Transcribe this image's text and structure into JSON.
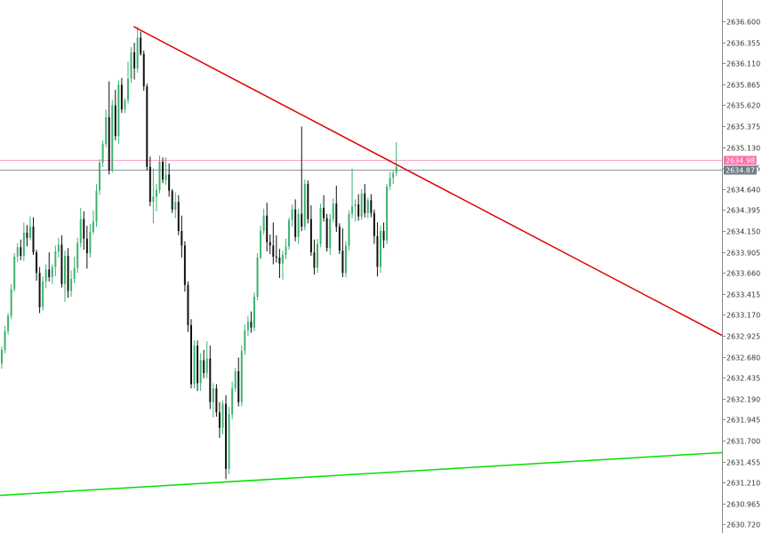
{
  "chart_data": {
    "type": "candlestick",
    "y_axis_side": "right",
    "ylim": [
      2630.62,
      2636.85
    ],
    "y_ticks": [
      "2636.600",
      "2636.355",
      "2636.110",
      "2635.865",
      "2635.620",
      "2635.375",
      "2635.130",
      "2634.885",
      "2634.640",
      "2634.395",
      "2634.150",
      "2633.905",
      "2633.660",
      "2633.415",
      "2633.170",
      "2632.925",
      "2632.680",
      "2632.435",
      "2632.190",
      "2631.945",
      "2631.700",
      "2631.455",
      "2631.210",
      "2630.965",
      "2630.720"
    ],
    "price_tags": [
      {
        "label": "2634.983",
        "value": 2634.983,
        "color": "#ff6fa8",
        "line_color": "#f5a6c4"
      },
      {
        "label": "2634.871",
        "value": 2634.871,
        "color": "#6d7a86",
        "line_color": "#8a96a2"
      }
    ],
    "trendlines": [
      {
        "name": "resistance",
        "color": "#e00000",
        "start": [
          0.185,
          2636.54
        ],
        "end": [
          1.0,
          2632.93
        ]
      },
      {
        "name": "support",
        "color": "#00e000",
        "start": [
          0.0,
          2631.06
        ],
        "end": [
          1.0,
          2631.56
        ]
      }
    ],
    "colors": {
      "bull": "#3cb371",
      "bear": "#111111",
      "axis": "#888888"
    },
    "candles": [
      [
        2632.6,
        2632.8,
        2632.54,
        2632.76
      ],
      [
        2632.76,
        2633.04,
        2632.72,
        2632.98
      ],
      [
        2632.98,
        2633.19,
        2632.94,
        2633.16
      ],
      [
        2633.16,
        2633.53,
        2633.12,
        2633.47
      ],
      [
        2633.47,
        2633.89,
        2633.44,
        2633.85
      ],
      [
        2633.85,
        2634.01,
        2633.79,
        2633.96
      ],
      [
        2633.96,
        2634.05,
        2633.81,
        2633.86
      ],
      [
        2633.86,
        2634.25,
        2633.8,
        2634.13
      ],
      [
        2634.13,
        2634.22,
        2633.97,
        2634.07
      ],
      [
        2634.07,
        2634.32,
        2634.04,
        2634.2
      ],
      [
        2634.2,
        2634.31,
        2633.87,
        2633.9
      ],
      [
        2633.9,
        2633.93,
        2633.57,
        2633.66
      ],
      [
        2633.66,
        2633.73,
        2633.19,
        2633.26
      ],
      [
        2633.26,
        2633.62,
        2633.22,
        2633.56
      ],
      [
        2633.56,
        2633.76,
        2633.48,
        2633.7
      ],
      [
        2633.7,
        2633.9,
        2633.56,
        2633.61
      ],
      [
        2633.61,
        2633.76,
        2633.53,
        2633.73
      ],
      [
        2633.73,
        2633.98,
        2633.62,
        2633.91
      ],
      [
        2633.91,
        2634.07,
        2633.84,
        2633.99
      ],
      [
        2633.99,
        2634.1,
        2633.49,
        2633.53
      ],
      [
        2633.53,
        2633.92,
        2633.32,
        2633.86
      ],
      [
        2633.86,
        2633.95,
        2633.37,
        2633.45
      ],
      [
        2633.45,
        2633.69,
        2633.38,
        2633.59
      ],
      [
        2633.59,
        2633.85,
        2633.54,
        2633.72
      ],
      [
        2633.72,
        2634.07,
        2633.66,
        2634.01
      ],
      [
        2634.01,
        2634.42,
        2633.96,
        2634.29
      ],
      [
        2634.29,
        2634.38,
        2633.93,
        2634.06
      ],
      [
        2634.06,
        2634.21,
        2633.71,
        2633.89
      ],
      [
        2633.89,
        2634.23,
        2633.84,
        2634.14
      ],
      [
        2634.14,
        2634.39,
        2634.11,
        2634.26
      ],
      [
        2634.26,
        2634.7,
        2634.2,
        2634.62
      ],
      [
        2634.62,
        2634.99,
        2634.57,
        2634.95
      ],
      [
        2634.95,
        2635.21,
        2634.9,
        2635.17
      ],
      [
        2635.17,
        2635.57,
        2635.13,
        2635.48
      ],
      [
        2635.48,
        2635.9,
        2634.81,
        2634.86
      ],
      [
        2634.86,
        2635.68,
        2634.83,
        2635.62
      ],
      [
        2635.62,
        2635.8,
        2635.21,
        2635.26
      ],
      [
        2635.26,
        2635.91,
        2635.17,
        2635.86
      ],
      [
        2635.86,
        2635.94,
        2635.53,
        2635.57
      ],
      [
        2635.57,
        2635.7,
        2635.53,
        2635.68
      ],
      [
        2635.68,
        2636.13,
        2635.64,
        2635.93
      ],
      [
        2635.93,
        2636.3,
        2635.88,
        2636.24
      ],
      [
        2636.24,
        2636.35,
        2635.92,
        2636.05
      ],
      [
        2636.05,
        2636.54,
        2636.0,
        2636.41
      ],
      [
        2636.41,
        2636.48,
        2636.2,
        2636.22
      ],
      [
        2636.22,
        2636.26,
        2635.79,
        2635.84
      ],
      [
        2635.84,
        2635.87,
        2634.86,
        2634.9
      ],
      [
        2634.9,
        2635.02,
        2634.44,
        2634.49
      ],
      [
        2634.49,
        2634.88,
        2634.24,
        2634.55
      ],
      [
        2634.55,
        2634.7,
        2634.38,
        2634.63
      ],
      [
        2634.63,
        2635.03,
        2634.59,
        2634.96
      ],
      [
        2634.96,
        2635.01,
        2634.71,
        2634.75
      ],
      [
        2634.75,
        2635.01,
        2634.69,
        2634.81
      ],
      [
        2634.81,
        2634.94,
        2634.55,
        2634.62
      ],
      [
        2634.62,
        2634.64,
        2634.36,
        2634.4
      ],
      [
        2634.4,
        2634.6,
        2634.3,
        2634.49
      ],
      [
        2634.49,
        2634.57,
        2634.1,
        2634.15
      ],
      [
        2634.15,
        2634.33,
        2633.84,
        2633.98
      ],
      [
        2633.98,
        2634.03,
        2633.44,
        2633.52
      ],
      [
        2633.52,
        2633.56,
        2632.97,
        2633.05
      ],
      [
        2633.05,
        2633.12,
        2632.31,
        2632.36
      ],
      [
        2632.36,
        2632.87,
        2632.31,
        2632.81
      ],
      [
        2632.81,
        2632.87,
        2632.28,
        2632.37
      ],
      [
        2632.37,
        2632.72,
        2632.28,
        2632.64
      ],
      [
        2632.64,
        2632.76,
        2632.43,
        2632.49
      ],
      [
        2632.49,
        2632.86,
        2632.43,
        2632.66
      ],
      [
        2632.66,
        2632.81,
        2632.07,
        2632.15
      ],
      [
        2632.15,
        2632.37,
        2631.97,
        2632.31
      ],
      [
        2632.31,
        2632.36,
        2631.98,
        2632.03
      ],
      [
        2632.03,
        2632.15,
        2631.73,
        2631.85
      ],
      [
        2631.85,
        2632.17,
        2631.77,
        2632.13
      ],
      [
        2632.13,
        2632.23,
        2631.25,
        2631.37
      ],
      [
        2631.37,
        2632.1,
        2631.31,
        2632.01
      ],
      [
        2632.01,
        2632.39,
        2631.95,
        2632.31
      ],
      [
        2632.31,
        2632.55,
        2632.27,
        2632.51
      ],
      [
        2632.51,
        2632.67,
        2632.1,
        2632.15
      ],
      [
        2632.15,
        2632.81,
        2632.1,
        2632.75
      ],
      [
        2632.75,
        2633.06,
        2632.7,
        2632.99
      ],
      [
        2632.99,
        2633.16,
        2632.92,
        2633.09
      ],
      [
        2633.09,
        2633.21,
        2632.96,
        2633.02
      ],
      [
        2633.02,
        2633.43,
        2632.98,
        2633.38
      ],
      [
        2633.38,
        2633.89,
        2633.34,
        2633.84
      ],
      [
        2633.84,
        2634.21,
        2633.82,
        2634.15
      ],
      [
        2634.15,
        2634.41,
        2634.11,
        2634.33
      ],
      [
        2634.33,
        2634.48,
        2633.91,
        2634.02
      ],
      [
        2634.02,
        2634.11,
        2633.88,
        2633.98
      ],
      [
        2633.98,
        2634.25,
        2633.76,
        2633.85
      ],
      [
        2633.85,
        2634.1,
        2633.78,
        2633.84
      ],
      [
        2633.84,
        2633.94,
        2633.6,
        2633.77
      ],
      [
        2633.77,
        2633.92,
        2633.58,
        2633.87
      ],
      [
        2633.87,
        2634.06,
        2633.82,
        2633.97
      ],
      [
        2633.97,
        2634.31,
        2633.93,
        2634.28
      ],
      [
        2634.28,
        2634.46,
        2634.2,
        2634.4
      ],
      [
        2634.4,
        2634.52,
        2634.03,
        2634.08
      ],
      [
        2634.08,
        2634.41,
        2634.0,
        2634.35
      ],
      [
        2634.35,
        2635.37,
        2634.15,
        2634.2
      ],
      [
        2634.2,
        2634.75,
        2634.16,
        2634.7
      ],
      [
        2634.7,
        2634.74,
        2634.24,
        2634.29
      ],
      [
        2634.29,
        2634.45,
        2633.86,
        2633.9
      ],
      [
        2633.9,
        2634.05,
        2633.64,
        2633.72
      ],
      [
        2633.72,
        2634.06,
        2633.66,
        2634.0
      ],
      [
        2634.0,
        2634.47,
        2633.96,
        2634.42
      ],
      [
        2634.42,
        2634.57,
        2634.26,
        2634.3
      ],
      [
        2634.3,
        2634.35,
        2633.91,
        2633.95
      ],
      [
        2633.95,
        2634.35,
        2633.87,
        2634.29
      ],
      [
        2634.29,
        2634.53,
        2634.25,
        2634.47
      ],
      [
        2634.47,
        2634.68,
        2634.14,
        2634.2
      ],
      [
        2634.2,
        2634.24,
        2633.88,
        2633.92
      ],
      [
        2633.92,
        2634.18,
        2633.61,
        2633.66
      ],
      [
        2633.66,
        2634.03,
        2633.61,
        2633.98
      ],
      [
        2633.98,
        2634.39,
        2633.92,
        2634.35
      ],
      [
        2634.35,
        2634.88,
        2634.3,
        2634.44
      ],
      [
        2634.44,
        2634.52,
        2634.26,
        2634.46
      ],
      [
        2634.46,
        2634.58,
        2634.27,
        2634.32
      ],
      [
        2634.32,
        2634.64,
        2634.28,
        2634.59
      ],
      [
        2634.59,
        2634.7,
        2634.31,
        2634.36
      ],
      [
        2634.36,
        2634.54,
        2634.3,
        2634.51
      ],
      [
        2634.51,
        2634.58,
        2634.31,
        2634.36
      ],
      [
        2634.36,
        2634.4,
        2634.0,
        2634.09
      ],
      [
        2634.09,
        2634.25,
        2633.62,
        2633.73
      ],
      [
        2633.73,
        2634.21,
        2633.66,
        2634.15
      ],
      [
        2634.15,
        2634.25,
        2633.95,
        2634.04
      ],
      [
        2634.04,
        2634.7,
        2634.0,
        2634.67
      ],
      [
        2634.67,
        2634.84,
        2634.63,
        2634.77
      ],
      [
        2634.77,
        2634.86,
        2634.7,
        2634.83
      ],
      [
        2634.83,
        2635.19,
        2634.79,
        2634.9
      ]
    ]
  }
}
